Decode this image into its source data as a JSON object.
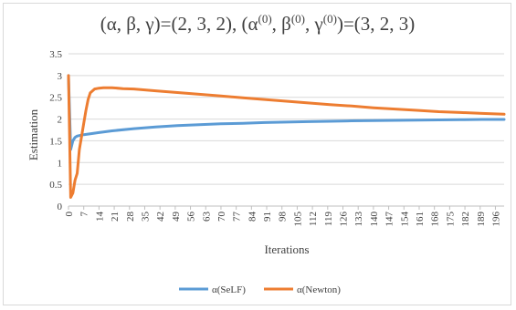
{
  "chart_data": {
    "type": "line",
    "title_parts": {
      "a": "(α, β, γ)=(2, 3, 2), (α",
      "s1": "(0)",
      "b": ", β",
      "s2": "(0)",
      "c": ", γ",
      "s3": "(0)",
      "d": ")=(3, 2, 3)"
    },
    "xlabel": "Iterations",
    "ylabel": "Estimation",
    "ylim": [
      0,
      3.5
    ],
    "yticks": [
      "0",
      "0.5",
      "1",
      "1.5",
      "2",
      "2.5",
      "3",
      "3.5"
    ],
    "xlim": [
      0,
      200
    ],
    "xticks": [
      "0",
      "7",
      "14",
      "21",
      "28",
      "35",
      "42",
      "49",
      "56",
      "63",
      "70",
      "77",
      "84",
      "91",
      "98",
      "105",
      "112",
      "119",
      "126",
      "133",
      "140",
      "147",
      "154",
      "161",
      "168",
      "175",
      "182",
      "189",
      "196"
    ],
    "grid": "horizontal",
    "legend_position": "bottom",
    "series": [
      {
        "name": "α(SeLF)",
        "color": "#5b9bd5",
        "x": [
          0,
          1,
          2,
          3,
          4,
          5,
          7,
          10,
          14,
          20,
          30,
          40,
          50,
          60,
          70,
          80,
          90,
          100,
          110,
          120,
          130,
          140,
          150,
          160,
          170,
          180,
          190,
          200
        ],
        "y": [
          3.0,
          1.3,
          1.5,
          1.58,
          1.61,
          1.62,
          1.64,
          1.66,
          1.69,
          1.73,
          1.78,
          1.82,
          1.85,
          1.87,
          1.89,
          1.9,
          1.92,
          1.93,
          1.94,
          1.95,
          1.96,
          1.965,
          1.97,
          1.975,
          1.98,
          1.985,
          1.99,
          1.99
        ]
      },
      {
        "name": "α(Newton)",
        "color": "#ed7d31",
        "x": [
          0,
          1,
          2,
          3,
          4,
          5,
          6,
          7,
          8,
          9,
          10,
          12,
          14,
          16,
          18,
          20,
          25,
          30,
          40,
          50,
          60,
          70,
          80,
          90,
          100,
          110,
          120,
          130,
          140,
          150,
          160,
          170,
          180,
          190,
          200
        ],
        "y": [
          3.0,
          0.2,
          0.3,
          0.6,
          0.75,
          1.3,
          1.6,
          1.9,
          2.2,
          2.45,
          2.6,
          2.69,
          2.71,
          2.72,
          2.72,
          2.72,
          2.7,
          2.69,
          2.65,
          2.61,
          2.57,
          2.53,
          2.49,
          2.45,
          2.41,
          2.37,
          2.33,
          2.3,
          2.26,
          2.23,
          2.2,
          2.17,
          2.15,
          2.13,
          2.11
        ]
      }
    ]
  }
}
